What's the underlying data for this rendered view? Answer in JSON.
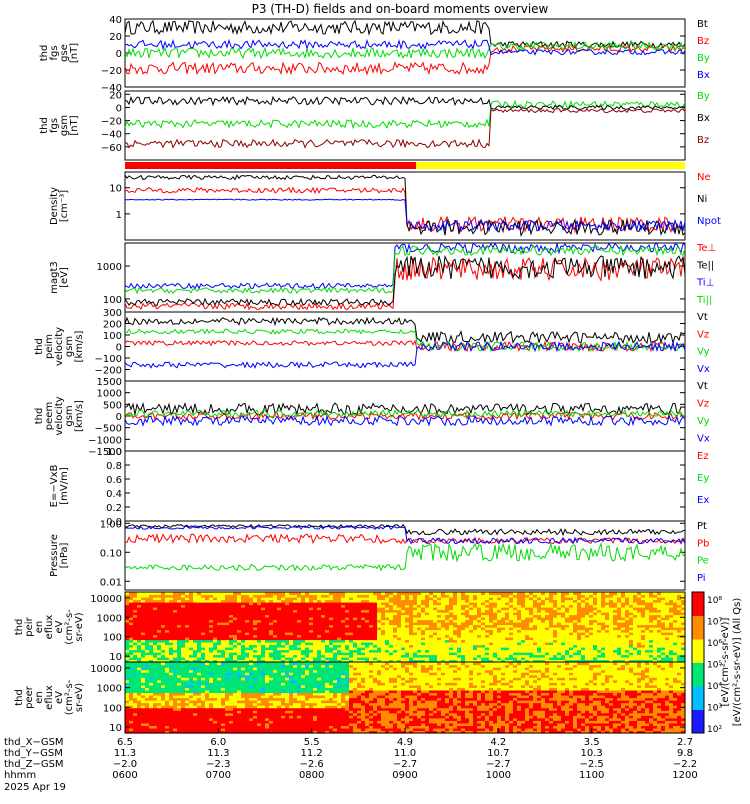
{
  "title": "P3 (TH-D) fields and on-board moments overview",
  "colors": {
    "black": "#000000",
    "red": "#ff0000",
    "green": "#00dd00",
    "blue": "#0000ff",
    "darkred": "#8b0000",
    "yellow": "#ffff00"
  },
  "chart_data": [
    {
      "type": "line",
      "id": "fgs_gse",
      "ylabel": [
        "thd",
        "fgs",
        "gse",
        "[nT]"
      ],
      "ylim": [
        -40,
        40
      ],
      "yticks": [
        "40",
        "20",
        "0",
        "−20",
        "−40"
      ],
      "series": [
        {
          "name": "Bt",
          "color": "black",
          "segments": [
            [
              0,
              0.65,
              30,
              8
            ],
            [
              0.65,
              1,
              10,
              4
            ]
          ]
        },
        {
          "name": "Bz",
          "color": "red",
          "segments": [
            [
              0,
              0.65,
              -18,
              7
            ],
            [
              0.65,
              1,
              5,
              4
            ]
          ]
        },
        {
          "name": "By",
          "color": "green",
          "segments": [
            [
              0,
              0.65,
              0,
              6
            ],
            [
              0.65,
              1,
              8,
              5
            ]
          ]
        },
        {
          "name": "Bx",
          "color": "blue",
          "segments": [
            [
              0,
              0.65,
              10,
              5
            ],
            [
              0.65,
              1,
              1,
              3
            ]
          ]
        }
      ]
    },
    {
      "type": "line",
      "id": "fgs_gsm",
      "ylabel": [
        "thd",
        "fgs",
        "gsm",
        "[nT]"
      ],
      "ylim": [
        -80,
        25
      ],
      "yticks": [
        "20",
        "0",
        "−20",
        "−40",
        "−60"
      ],
      "series": [
        {
          "name": "By",
          "color": "green",
          "segments": [
            [
              0,
              0.65,
              -25,
              6
            ],
            [
              0.65,
              1,
              5,
              5
            ]
          ]
        },
        {
          "name": "Bx",
          "color": "black",
          "segments": [
            [
              0,
              0.65,
              10,
              6
            ],
            [
              0.65,
              1,
              0,
              3
            ]
          ]
        },
        {
          "name": "Bz",
          "color": "darkred",
          "segments": [
            [
              0,
              0.65,
              -55,
              6
            ],
            [
              0.65,
              1,
              -5,
              3
            ]
          ]
        }
      ]
    },
    {
      "type": "bar-strip",
      "id": "mode_bar",
      "segments": [
        {
          "color": "red",
          "from": 0,
          "to": 0.52
        },
        {
          "color": "yellow",
          "from": 0.52,
          "to": 1
        }
      ]
    },
    {
      "type": "line",
      "id": "density",
      "scale": "log",
      "ylabel": [
        "Density",
        "[cm⁻³]"
      ],
      "ylim": [
        0.1,
        40
      ],
      "yticks": [
        "10",
        "1"
      ],
      "series": [
        {
          "name": "Ne",
          "color": "red",
          "segments": [
            [
              0,
              0.5,
              8,
              0.1
            ],
            [
              0.5,
              1,
              0.4,
              0.3
            ]
          ]
        },
        {
          "name": "Ni",
          "color": "black",
          "segments": [
            [
              0,
              0.5,
              25,
              0.08
            ],
            [
              0.5,
              1,
              0.3,
              0.3
            ]
          ]
        },
        {
          "name": "Npot",
          "color": "blue",
          "segments": [
            [
              0,
              0.5,
              3.5,
              0.02
            ],
            [
              0.5,
              1,
              0.35,
              0.2
            ]
          ]
        }
      ]
    },
    {
      "type": "line",
      "id": "temp",
      "scale": "log",
      "ylabel": [
        "magt3",
        "[eV]"
      ],
      "ylim": [
        40,
        5000
      ],
      "yticks": [
        "1000",
        "100"
      ],
      "series": [
        {
          "name": "Te⊥",
          "color": "red",
          "segments": [
            [
              0,
              0.48,
              60,
              0.1
            ],
            [
              0.48,
              1,
              800,
              0.35
            ]
          ]
        },
        {
          "name": "Te||",
          "color": "black",
          "segments": [
            [
              0,
              0.48,
              80,
              0.1
            ],
            [
              0.48,
              1,
              900,
              0.35
            ]
          ]
        },
        {
          "name": "Ti⊥",
          "color": "blue",
          "segments": [
            [
              0,
              0.48,
              250,
              0.08
            ],
            [
              0.48,
              1,
              3500,
              0.15
            ]
          ]
        },
        {
          "name": "Ti||",
          "color": "green",
          "segments": [
            [
              0,
              0.48,
              180,
              0.08
            ],
            [
              0.48,
              1,
              3000,
              0.15
            ]
          ]
        }
      ]
    },
    {
      "type": "line",
      "id": "peim",
      "ylabel": [
        "thd",
        "peim",
        "velocity",
        "gsm",
        "[km/s]"
      ],
      "ylim": [
        -300,
        300
      ],
      "yticks": [
        "300",
        "200",
        "100",
        "0",
        "−100",
        "−200"
      ],
      "series": [
        {
          "name": "Vt",
          "color": "black",
          "segments": [
            [
              0,
              0.52,
              220,
              30
            ],
            [
              0.52,
              1,
              80,
              50
            ]
          ]
        },
        {
          "name": "Vz",
          "color": "red",
          "segments": [
            [
              0,
              0.52,
              30,
              20
            ],
            [
              0.52,
              1,
              0,
              40
            ]
          ]
        },
        {
          "name": "Vy",
          "color": "green",
          "segments": [
            [
              0,
              0.52,
              130,
              20
            ],
            [
              0.52,
              1,
              0,
              40
            ]
          ]
        },
        {
          "name": "Vx",
          "color": "blue",
          "segments": [
            [
              0,
              0.52,
              -160,
              25
            ],
            [
              0.52,
              1,
              0,
              40
            ]
          ]
        }
      ]
    },
    {
      "type": "line",
      "id": "peem",
      "ylabel": [
        "thd",
        "peem",
        "velocity",
        "gsm",
        "[km/s]"
      ],
      "ylim": [
        -1500,
        1500
      ],
      "yticks": [
        "1500",
        "1000",
        "500",
        "0",
        "−500",
        "−1000",
        "−1500"
      ],
      "series": [
        {
          "name": "Vt",
          "color": "black",
          "segments": [
            [
              0,
              1,
              300,
              250
            ]
          ]
        },
        {
          "name": "Vz",
          "color": "red",
          "segments": [
            [
              0,
              1,
              0,
              150
            ]
          ]
        },
        {
          "name": "Vy",
          "color": "green",
          "segments": [
            [
              0,
              1,
              100,
              150
            ]
          ]
        },
        {
          "name": "Vx",
          "color": "blue",
          "segments": [
            [
              0,
              1,
              -200,
              200
            ]
          ]
        }
      ]
    },
    {
      "type": "line",
      "id": "efield",
      "ylabel": [
        "E=−VxB",
        "[mV/m]"
      ],
      "ylim": [
        0,
        1
      ],
      "yticks": [
        "1.0",
        "0.8",
        "0.6",
        "0.4",
        "0.2",
        "0.0"
      ],
      "series": [
        {
          "name": "Ez",
          "color": "red",
          "segments": []
        },
        {
          "name": "Ey",
          "color": "green",
          "segments": []
        },
        {
          "name": "Ex",
          "color": "blue",
          "segments": []
        }
      ]
    },
    {
      "type": "line",
      "id": "pressure",
      "scale": "log",
      "ylabel": [
        "Pressure",
        "[nPa]"
      ],
      "ylim": [
        0.005,
        1.2
      ],
      "yticks": [
        "1.00",
        "0.10",
        "0.01"
      ],
      "series": [
        {
          "name": "Pt",
          "color": "black",
          "segments": [
            [
              0,
              0.5,
              0.8,
              0.05
            ],
            [
              0.5,
              1,
              0.5,
              0.1
            ]
          ]
        },
        {
          "name": "Pb",
          "color": "red",
          "segments": [
            [
              0,
              0.45,
              0.3,
              0.15
            ],
            [
              0.45,
              1,
              0.25,
              0.1
            ]
          ]
        },
        {
          "name": "Pe",
          "color": "green",
          "segments": [
            [
              0,
              0.5,
              0.03,
              0.1
            ],
            [
              0.5,
              1,
              0.1,
              0.3
            ]
          ]
        },
        {
          "name": "Pi",
          "color": "blue",
          "segments": [
            [
              0,
              0.5,
              0.7,
              0.05
            ],
            [
              0.5,
              1,
              0.25,
              0.1
            ]
          ]
        }
      ]
    },
    {
      "type": "heatmap",
      "id": "peir",
      "ylabel": [
        "thd",
        "peir",
        "en",
        "eflux",
        "eV",
        "(cm²-s-",
        "sr-eV)"
      ],
      "scale": "log",
      "ylim": [
        5,
        20000
      ],
      "yticks": [
        "10000",
        "1000",
        "100",
        "10"
      ],
      "palette": "rainbow"
    },
    {
      "type": "heatmap",
      "id": "peer",
      "ylabel": [
        "thd",
        "peer",
        "en",
        "eflux",
        "eV",
        "(cm²-s-",
        "sr-eV)"
      ],
      "scale": "log",
      "ylim": [
        5,
        20000
      ],
      "yticks": [
        "10000",
        "1000",
        "100",
        "10"
      ],
      "palette": "rainbow"
    }
  ],
  "colorbar": {
    "label": "[eV/(cm²-s-sr-eV)] (All Qs)",
    "label_overlap": "[eV/(cm²-s-sr-eV)]",
    "ticks": [
      "10⁸",
      "10⁷",
      "10⁶",
      "10⁵",
      "10⁴",
      "10³",
      "10²"
    ]
  },
  "x_axis": {
    "rows": [
      {
        "label": "thd_X−GSM",
        "values": [
          "6.5",
          "6.0",
          "5.5",
          "4.9",
          "4.2",
          "3.5",
          "2.7"
        ]
      },
      {
        "label": "thd_Y−GSM",
        "values": [
          "11.3",
          "11.3",
          "11.2",
          "11.0",
          "10.7",
          "10.3",
          "9.8"
        ]
      },
      {
        "label": "thd_Z−GSM",
        "values": [
          "−2.0",
          "−2.3",
          "−2.6",
          "−2.7",
          "−2.7",
          "−2.5",
          "−2.2"
        ]
      },
      {
        "label": "hhmm",
        "values": [
          "0600",
          "0700",
          "0800",
          "0900",
          "1000",
          "1100",
          "1200"
        ]
      }
    ],
    "date": "2025 Apr 19"
  }
}
